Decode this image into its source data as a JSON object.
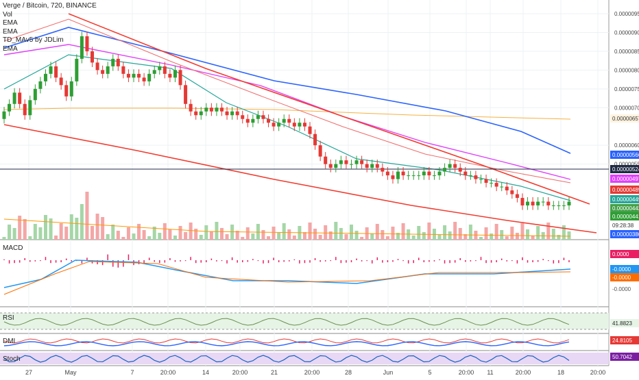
{
  "legend": {
    "title": "Verge / Bitcoin, 720, BINANCE",
    "vol": "Vol",
    "ema1": "EMA",
    "ema2": "EMA",
    "td": "TD_MAv5 by JDLim",
    "ema3": "EMA"
  },
  "panes": {
    "macd": "MACD",
    "rsi": "RSI",
    "dmi": "DMI",
    "stoch": "Stoch"
  },
  "colors": {
    "up": "#26a69a",
    "down": "#ef5350",
    "up_body": "#2e9e34",
    "down_body": "#e53935",
    "trendline": "#f23b2f",
    "ema_blue": "#2962ff",
    "ema_pink": "#e040fb",
    "ema_red": "#f06b6b",
    "ema_orange": "#f5b041",
    "ema_teal": "#26a69a",
    "vol_ma": "#ff9800",
    "macd_line": "#2196f3",
    "signal_line": "#ff6d00",
    "hist": "#e91e63",
    "rsi_fill": "#e6f4e6",
    "stoch_fill": "#e8d7f5"
  },
  "chart_data": {
    "type": "candlestick",
    "title": "Verge / Bitcoin, 720, BINANCE",
    "ylim": [
      3.8e-06,
      9.6e-06
    ],
    "y_ticks": [
      "0.00000950",
      "0.00000900",
      "0.00000850",
      "0.00000800",
      "0.00000750",
      "0.00000700",
      "0.00000600",
      "0.00000550"
    ],
    "x_ticks": [
      "27",
      "May",
      "7",
      "20:00",
      "14",
      "20:00",
      "21",
      "20:00",
      "28",
      "Jun",
      "5",
      "20:00",
      "11",
      "20:00",
      "18",
      "20:00"
    ],
    "closes": [
      6.9,
      7.1,
      7.4,
      7.1,
      6.8,
      7.2,
      7.5,
      7.7,
      7.9,
      8.1,
      7.8,
      7.6,
      7.3,
      7.7,
      8.3,
      8.9,
      8.5,
      8.2,
      8.0,
      7.9,
      8.1,
      8.3,
      8.1,
      7.9,
      7.8,
      7.9,
      7.8,
      7.7,
      7.9,
      8.0,
      8.1,
      7.9,
      7.8,
      8.0,
      7.6,
      7.1,
      6.9,
      6.8,
      6.9,
      7.0,
      6.9,
      7.0,
      6.9,
      6.8,
      6.9,
      6.8,
      6.7,
      6.6,
      6.7,
      6.8,
      6.7,
      6.6,
      6.5,
      6.6,
      6.7,
      6.6,
      6.5,
      6.6,
      6.5,
      6.3,
      6.0,
      5.7,
      5.5,
      5.4,
      5.5,
      5.6,
      5.5,
      5.5,
      5.6,
      5.5,
      5.4,
      5.5,
      5.4,
      5.3,
      5.2,
      5.1,
      5.3,
      5.2,
      5.2,
      5.2,
      5.2,
      5.3,
      5.2,
      5.2,
      5.3,
      5.4,
      5.5,
      5.4,
      5.3,
      5.2,
      5.2,
      5.1,
      5.1,
      5.0,
      5.0,
      4.9,
      4.9,
      4.8,
      4.7,
      4.6,
      4.4,
      4.5,
      4.4,
      4.5,
      4.5,
      4.4,
      4.4,
      4.4,
      4.4,
      4.5
    ],
    "annotated_values": {
      "ema_orange": "0.00000657",
      "ema_blue": "0.00000566",
      "horizontal_line": "0.00000524",
      "ema_pink": "0.00000497",
      "ema_red": "0.00000489",
      "ema_teal": "0.00000449",
      "ema_green": "0.00000442",
      "last_price": "0.00000441",
      "countdown": "09:28:38",
      "vol_level": "0.00000380"
    },
    "macd": {
      "ticks": [
        "0.0000",
        "-0.0000"
      ],
      "macd_value": "-0.0000",
      "signal_value": "-0.0000",
      "hist_value": "0.0000"
    },
    "rsi": {
      "value": "41.8823"
    },
    "dmi": {
      "value": "24.8105"
    },
    "stoch": {
      "value": "50.7042"
    }
  }
}
